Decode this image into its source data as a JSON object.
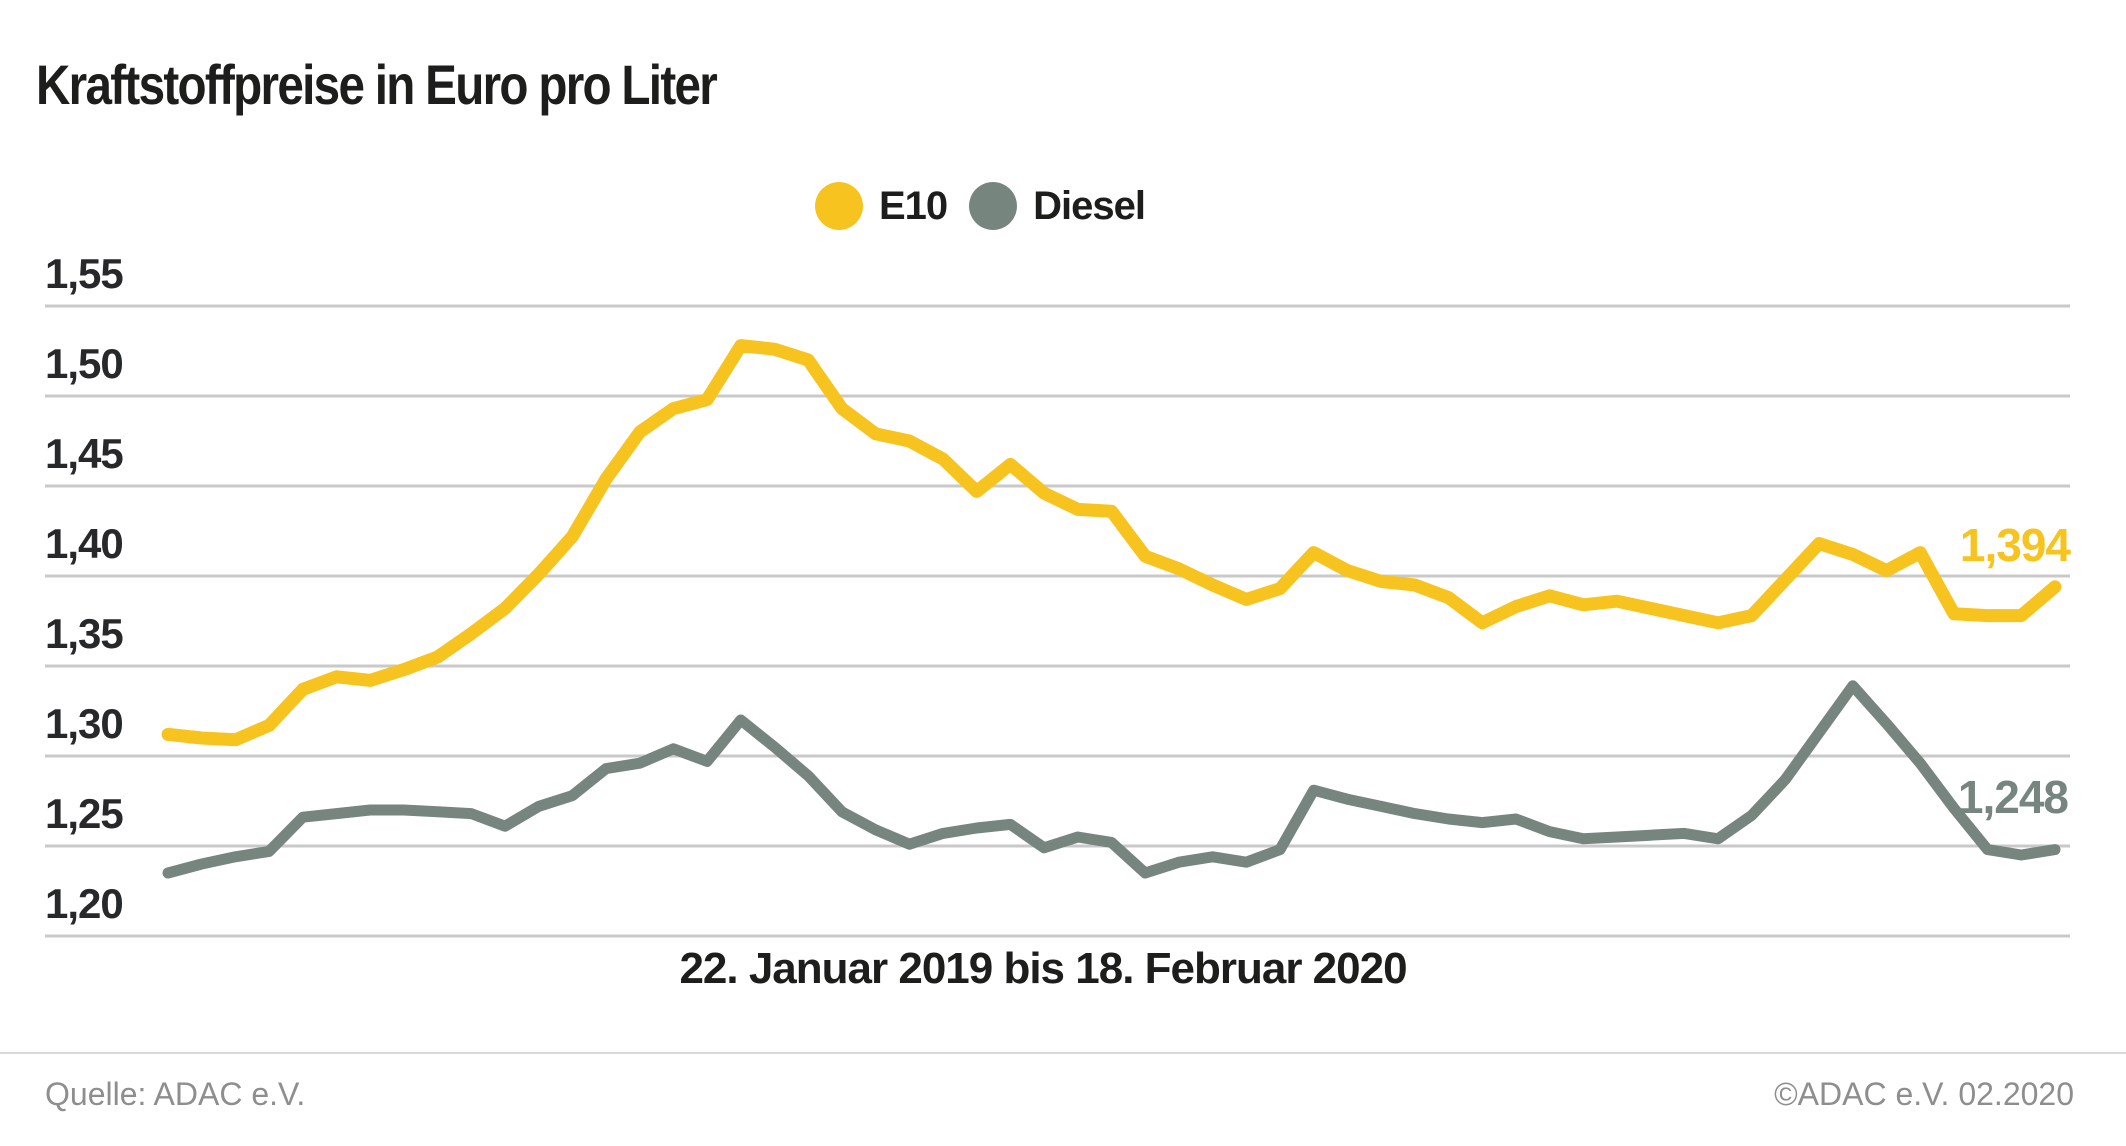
{
  "title": "Kraftstoffpreise in Euro pro Liter",
  "legend": [
    {
      "label": "E10",
      "color": "#f7c41f"
    },
    {
      "label": "Diesel",
      "color": "#76867f"
    }
  ],
  "colors": {
    "e10": "#f7c41f",
    "diesel": "#76867f",
    "gridline": "#c9c9c9",
    "title_text": "#1d1d1b",
    "tick_text": "#26282a",
    "footer_text": "#8e8e8e"
  },
  "end_labels": {
    "e10": "1,394",
    "diesel": "1,248"
  },
  "x_axis_label": "22. Januar 2019 bis 18. Februar 2020",
  "footer": {
    "source": "Quelle: ADAC e.V.",
    "copyright": "©ADAC e.V.  02.2020"
  },
  "chart_data": {
    "type": "line",
    "title": "Kraftstoffpreise in Euro pro Liter",
    "xlabel": "22. Januar 2019 bis 18. Februar 2020",
    "ylabel": "Euro pro Liter",
    "x_range": [
      "22.01.2019",
      "18.02.2020"
    ],
    "x_interval": "weekly",
    "n_points": 57,
    "ylim": [
      1.2,
      1.55
    ],
    "ytick_step": 0.05,
    "ytick_labels": [
      "1,55",
      "1,50",
      "1,45",
      "1,40",
      "1,35",
      "1,30",
      "1,25",
      "1,20"
    ],
    "ytick_values": [
      1.55,
      1.5,
      1.45,
      1.4,
      1.35,
      1.3,
      1.25,
      1.2
    ],
    "grid": "horizontal",
    "legend_position": "top-center",
    "series": [
      {
        "name": "E10",
        "color": "#f7c41f",
        "last_value_label": "1,394",
        "values": [
          1.312,
          1.31,
          1.309,
          1.317,
          1.337,
          1.344,
          1.342,
          1.348,
          1.355,
          1.368,
          1.382,
          1.401,
          1.422,
          1.454,
          1.48,
          1.493,
          1.498,
          1.528,
          1.526,
          1.52,
          1.493,
          1.479,
          1.475,
          1.465,
          1.447,
          1.462,
          1.446,
          1.437,
          1.436,
          1.411,
          1.404,
          1.395,
          1.387,
          1.393,
          1.413,
          1.403,
          1.397,
          1.395,
          1.388,
          1.374,
          1.383,
          1.389,
          1.384,
          1.386,
          1.382,
          1.378,
          1.374,
          1.378,
          1.398,
          1.418,
          1.412,
          1.403,
          1.413,
          1.379,
          1.378,
          1.378,
          1.394
        ]
      },
      {
        "name": "Diesel",
        "color": "#76867f",
        "last_value_label": "1,248",
        "values": [
          1.235,
          1.24,
          1.244,
          1.247,
          1.266,
          1.268,
          1.27,
          1.27,
          1.269,
          1.268,
          1.261,
          1.272,
          1.278,
          1.293,
          1.296,
          1.304,
          1.297,
          1.32,
          1.305,
          1.289,
          1.269,
          1.259,
          1.251,
          1.257,
          1.26,
          1.262,
          1.249,
          1.255,
          1.252,
          1.235,
          1.241,
          1.244,
          1.241,
          1.248,
          1.281,
          1.276,
          1.272,
          1.268,
          1.265,
          1.263,
          1.265,
          1.258,
          1.254,
          1.255,
          1.256,
          1.257,
          1.254,
          1.267,
          1.287,
          1.313,
          1.339,
          1.318,
          1.296,
          1.271,
          1.248,
          1.245,
          1.248
        ]
      }
    ]
  }
}
